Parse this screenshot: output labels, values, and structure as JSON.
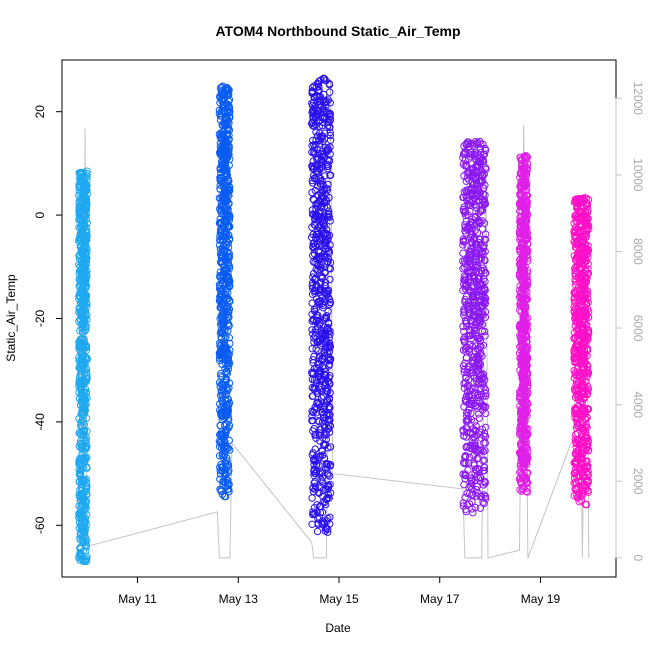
{
  "chart_data": {
    "type": "scatter",
    "title": "ATOM4 Northbound Static_Air_Temp",
    "xlabel": "Date",
    "ylabel": "Static_Air_Temp",
    "xlim": [
      "2019-05-09T12:00",
      "2019-05-20T12:00"
    ],
    "ylim": [
      -70,
      30
    ],
    "y2lim": [
      -500,
      13000
    ],
    "x_ticks": [
      {
        "date": "2019-05-11",
        "label": "May 11"
      },
      {
        "date": "2019-05-13",
        "label": "May 13"
      },
      {
        "date": "2019-05-15",
        "label": "May 15"
      },
      {
        "date": "2019-05-17",
        "label": "May 17"
      },
      {
        "date": "2019-05-19",
        "label": "May 19"
      }
    ],
    "y_ticks": [
      {
        "value": 20,
        "label": "20"
      },
      {
        "value": 0,
        "label": "0"
      },
      {
        "value": -20,
        "label": "-20"
      },
      {
        "value": -40,
        "label": "-40"
      },
      {
        "value": -60,
        "label": "-60"
      }
    ],
    "y2_ticks": [
      {
        "value": 0,
        "label": "0"
      },
      {
        "value": 2000,
        "label": "2000"
      },
      {
        "value": 4000,
        "label": "4000"
      },
      {
        "value": 6000,
        "label": "6000"
      },
      {
        "value": 8000,
        "label": "8000"
      },
      {
        "value": 10000,
        "label": "10000"
      },
      {
        "value": 12000,
        "label": "12000"
      }
    ],
    "grid": false,
    "legend": "none",
    "colors": {
      "temp_series": [
        "#1ea8f0",
        "#0a5cf2",
        "#2a10ee",
        "#8a18f2",
        "#e020e6",
        "#ff10c8"
      ],
      "altitude_series": "#c4c4c4"
    },
    "series": [
      {
        "date": "2019-05-09",
        "start": "2019-05-09T20:00",
        "end": "2019-05-10T00:00",
        "temp_min": -67,
        "temp_max": 8.5
      },
      {
        "date": "2019-05-12",
        "start": "2019-05-12T15:00",
        "end": "2019-05-12T20:00",
        "temp_min": -54.5,
        "temp_max": 25
      },
      {
        "date": "2019-05-14",
        "start": "2019-05-14T11:00",
        "end": "2019-05-14T20:00",
        "temp_min": -61.5,
        "temp_max": 26.5
      },
      {
        "date": "2019-05-17",
        "start": "2019-05-17T11:00",
        "end": "2019-05-17T22:00",
        "temp_min": -58,
        "temp_max": 14.5
      },
      {
        "date": "2019-05-18",
        "start": "2019-05-18T14:00",
        "end": "2019-05-18T18:00",
        "temp_min": -54,
        "temp_max": 11.5
      },
      {
        "date": "2019-05-19",
        "start": "2019-05-19T16:00",
        "end": "2019-05-19T23:00",
        "temp_min": -56,
        "temp_max": 3.5
      }
    ],
    "altitude_path": [
      [
        "2019-05-09T20:00",
        700
      ],
      [
        "2019-05-09T21:00",
        10000
      ],
      [
        "2019-05-09T22:00",
        700
      ],
      [
        "2019-05-09T23:00",
        11200
      ],
      [
        "2019-05-10T00:00",
        300
      ],
      [
        "2019-05-12T14:00",
        1200
      ],
      [
        "2019-05-12T15:00",
        0
      ],
      [
        "2019-05-12T16:00",
        0
      ],
      [
        "2019-05-12T17:00",
        0
      ],
      [
        "2019-05-12T18:00",
        0
      ],
      [
        "2019-05-12T19:00",
        0
      ],
      [
        "2019-05-12T20:00",
        0
      ],
      [
        "2019-05-12T21:00",
        3000
      ],
      [
        "2019-05-14T11:00",
        400
      ],
      [
        "2019-05-14T12:00",
        0
      ],
      [
        "2019-05-14T14:00",
        0
      ],
      [
        "2019-05-14T16:00",
        0
      ],
      [
        "2019-05-14T18:00",
        0
      ],
      [
        "2019-05-14T20:00",
        12500
      ],
      [
        "2019-05-14T21:00",
        2200
      ],
      [
        "2019-05-17T11:00",
        1800
      ],
      [
        "2019-05-17T12:00",
        0
      ],
      [
        "2019-05-17T14:00",
        0
      ],
      [
        "2019-05-17T17:00",
        0
      ],
      [
        "2019-05-17T20:00",
        0
      ],
      [
        "2019-05-17T22:00",
        10800
      ],
      [
        "2019-05-17T23:00",
        0
      ],
      [
        "2019-05-18T14:00",
        200
      ],
      [
        "2019-05-18T16:00",
        11300
      ],
      [
        "2019-05-18T18:00",
        0
      ],
      [
        "2019-05-19T16:00",
        3200
      ],
      [
        "2019-05-19T18:00",
        9100
      ],
      [
        "2019-05-19T20:00",
        0
      ],
      [
        "2019-05-19T22:00",
        9400
      ],
      [
        "2019-05-19T23:00",
        0
      ]
    ]
  }
}
